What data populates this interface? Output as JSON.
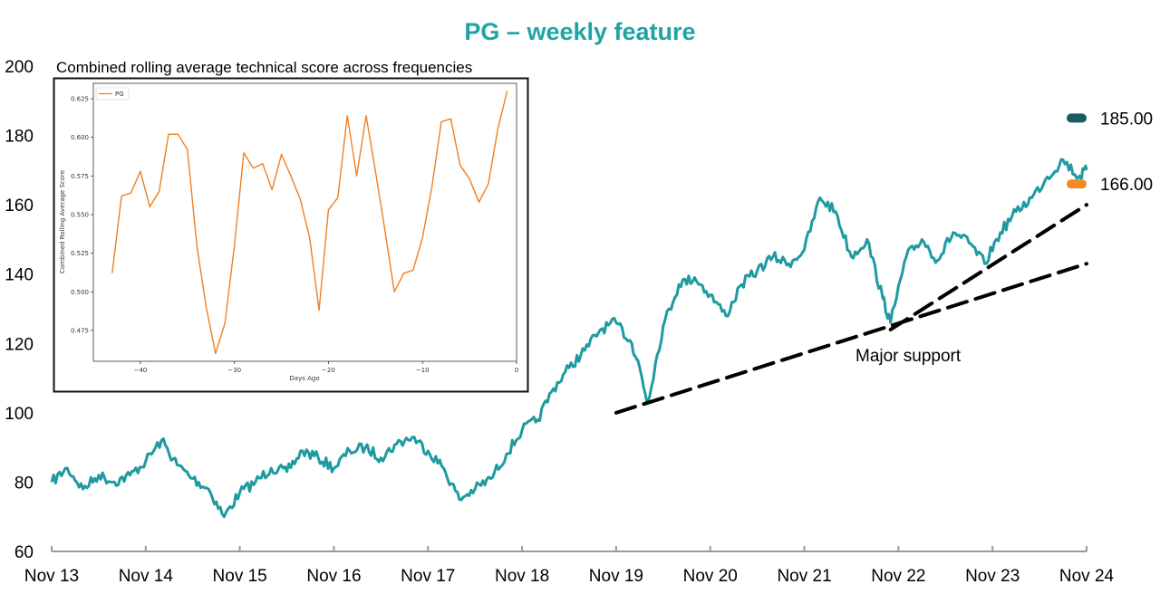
{
  "colors": {
    "teal": "#1e9aa0",
    "title": "#20a3a3",
    "dark_teal": "#155e63",
    "orange": "#f08a26",
    "inset_line": "#f07f1f"
  },
  "chart_data": [
    {
      "type": "line",
      "title": "PG – weekly feature",
      "x_ticks": [
        "Nov 13",
        "Nov 14",
        "Nov 15",
        "Nov 16",
        "Nov 17",
        "Nov 18",
        "Nov 19",
        "Nov 20",
        "Nov 21",
        "Nov 22",
        "Nov 23",
        "Nov 24"
      ],
      "y_ticks": [
        "60",
        "80",
        "100",
        "120",
        "140",
        "160",
        "180",
        "200"
      ],
      "ylim": [
        60,
        200
      ],
      "xlim": [
        "2013-11",
        "2024-11"
      ],
      "grid": false,
      "series": [
        {
          "type": "line",
          "x": [
            "2013-11",
            "2014-01",
            "2014-03",
            "2014-05",
            "2014-07",
            "2014-09",
            "2014-11",
            "2015-01",
            "2015-03",
            "2015-05",
            "2015-07",
            "2015-09",
            "2015-11",
            "2016-01",
            "2016-03",
            "2016-05",
            "2016-07",
            "2016-09",
            "2016-11",
            "2017-01",
            "2017-03",
            "2017-05",
            "2017-07",
            "2017-09",
            "2017-11",
            "2018-01",
            "2018-03",
            "2018-05",
            "2018-07",
            "2018-09",
            "2018-11",
            "2019-01",
            "2019-03",
            "2019-05",
            "2019-07",
            "2019-09",
            "2019-11",
            "2020-01",
            "2020-02",
            "2020-03",
            "2020-05",
            "2020-07",
            "2020-09",
            "2020-11",
            "2021-01",
            "2021-03",
            "2021-05",
            "2021-07",
            "2021-09",
            "2021-11",
            "2022-01",
            "2022-03",
            "2022-05",
            "2022-07",
            "2022-09",
            "2022-10",
            "2022-12",
            "2023-02",
            "2023-04",
            "2023-06",
            "2023-08",
            "2023-10",
            "2023-12",
            "2024-02",
            "2024-04",
            "2024-06",
            "2024-08",
            "2024-10",
            "2024-11"
          ],
          "values": [
            80,
            84,
            78,
            82,
            80,
            82,
            86,
            92,
            85,
            81,
            78,
            70,
            77,
            80,
            84,
            83,
            89,
            87,
            84,
            89,
            90,
            87,
            91,
            93,
            89,
            84,
            75,
            78,
            81,
            88,
            95,
            98,
            107,
            113,
            118,
            124,
            126,
            120,
            113,
            103,
            125,
            137,
            139,
            134,
            128,
            137,
            141,
            145,
            143,
            147,
            162,
            158,
            145,
            150,
            133,
            126,
            145,
            150,
            144,
            152,
            149,
            143,
            152,
            158,
            162,
            168,
            173,
            168,
            170
          ]
        },
        {
          "name": "Major support",
          "type": "dashed-trendline",
          "x": [
            "2019-11",
            "2024-11"
          ],
          "values": [
            100,
            143
          ]
        },
        {
          "type": "dashed-trendline",
          "x": [
            "2022-10",
            "2024-11"
          ],
          "values": [
            124,
            160
          ]
        }
      ],
      "annotations": [
        {
          "text": "Major support",
          "x": "2022-10",
          "y": 117
        }
      ],
      "targets": [
        {
          "label": "185.00",
          "value": 185,
          "color": "#155e63"
        },
        {
          "label": "166.00",
          "value": 166,
          "color": "#f08a26"
        }
      ]
    },
    {
      "type": "line",
      "title": "Combined rolling average technical score across frequencies",
      "xlabel": "Days Ago",
      "ylabel": "Combined Rolling Average Score",
      "xlim": [
        -45,
        0
      ],
      "ylim": [
        0.455,
        0.635
      ],
      "x_ticks": [
        "-40",
        "-30",
        "-20",
        "-10",
        "0"
      ],
      "y_ticks": [
        "0.475",
        "0.500",
        "0.525",
        "0.550",
        "0.575",
        "0.600",
        "0.625"
      ],
      "legend": "top-left",
      "series": [
        {
          "name": "PG",
          "x": [
            -43,
            -42,
            -41,
            -40,
            -39,
            -38,
            -37,
            -36,
            -35,
            -34,
            -33,
            -32,
            -31,
            -30,
            -29,
            -28,
            -27,
            -26,
            -25,
            -24,
            -23,
            -22,
            -21,
            -20,
            -19,
            -18,
            -17,
            -16,
            -15,
            -14,
            -13,
            -12,
            -11,
            -10,
            -9,
            -8,
            -7,
            -6,
            -5,
            -4,
            -3,
            -2,
            -1
          ],
          "values": [
            0.512,
            0.562,
            0.564,
            0.578,
            0.555,
            0.565,
            0.602,
            0.602,
            0.592,
            0.53,
            0.49,
            0.46,
            0.48,
            0.53,
            0.59,
            0.58,
            0.583,
            0.566,
            0.589,
            0.575,
            0.56,
            0.535,
            0.488,
            0.553,
            0.561,
            0.614,
            0.575,
            0.614,
            0.578,
            0.54,
            0.5,
            0.512,
            0.514,
            0.535,
            0.568,
            0.61,
            0.612,
            0.582,
            0.573,
            0.558,
            0.57,
            0.605,
            0.63
          ]
        }
      ]
    }
  ]
}
